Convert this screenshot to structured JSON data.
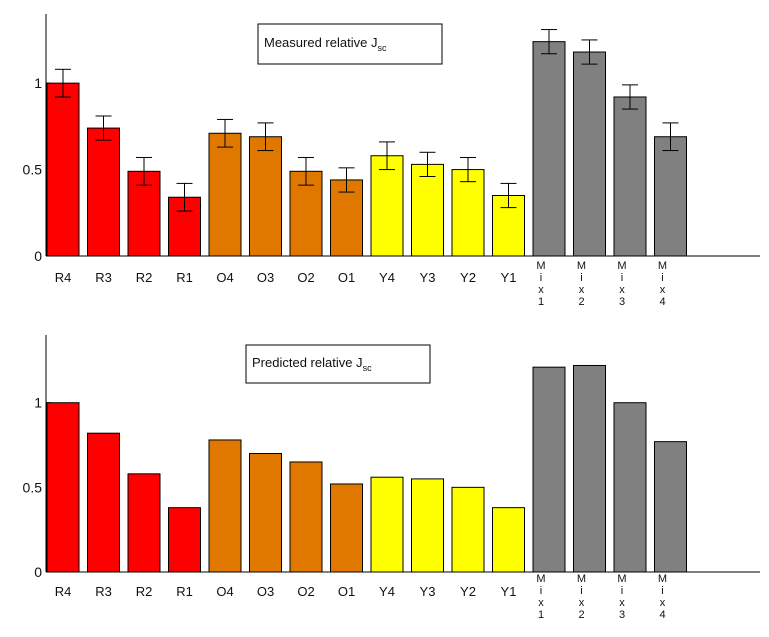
{
  "chart_data": [
    {
      "type": "bar",
      "title": "Measured relative J",
      "title_subscript": "sc",
      "categories": [
        "R4",
        "R3",
        "R2",
        "R1",
        "O4",
        "O3",
        "O2",
        "O1",
        "Y4",
        "Y3",
        "Y2",
        "Y1",
        "Mix1",
        "Mix2",
        "Mix3",
        "Mix4"
      ],
      "category_labels": [
        "R4",
        "R3",
        "R2",
        "R1",
        "O4",
        "O3",
        "O2",
        "O1",
        "Y4",
        "Y3",
        "Y2",
        "Y1",
        [
          "M",
          "i",
          "x",
          "1"
        ],
        [
          "M",
          "i",
          "x",
          "2"
        ],
        [
          "M",
          "i",
          "x",
          "3"
        ],
        [
          "M",
          "i",
          "x",
          "4"
        ]
      ],
      "values": [
        1.0,
        0.74,
        0.49,
        0.34,
        0.71,
        0.69,
        0.49,
        0.44,
        0.58,
        0.53,
        0.5,
        0.35,
        1.24,
        1.18,
        0.92,
        0.69
      ],
      "errors": [
        0.08,
        0.07,
        0.08,
        0.08,
        0.08,
        0.08,
        0.08,
        0.07,
        0.08,
        0.07,
        0.07,
        0.07,
        0.07,
        0.07,
        0.07,
        0.08
      ],
      "colors": [
        "#ff0000",
        "#ff0000",
        "#ff0000",
        "#ff0000",
        "#e07800",
        "#e07800",
        "#e07800",
        "#e07800",
        "#ffff00",
        "#ffff00",
        "#ffff00",
        "#ffff00",
        "#808080",
        "#808080",
        "#808080",
        "#808080"
      ],
      "yticks": [
        0,
        0.5,
        1
      ],
      "ytick_labels": [
        "0",
        "0.5",
        "1"
      ],
      "ylim": [
        0,
        1.4
      ],
      "grid": false,
      "legend": "none"
    },
    {
      "type": "bar",
      "title": "Predicted relative J",
      "title_subscript": "sc",
      "categories": [
        "R4",
        "R3",
        "R2",
        "R1",
        "O4",
        "O3",
        "O2",
        "O1",
        "Y4",
        "Y3",
        "Y2",
        "Y1",
        "Mix1",
        "Mix2",
        "Mix3",
        "Mix4"
      ],
      "category_labels": [
        "R4",
        "R3",
        "R2",
        "R1",
        "O4",
        "O3",
        "O2",
        "O1",
        "Y4",
        "Y3",
        "Y2",
        "Y1",
        [
          "M",
          "i",
          "x",
          "1"
        ],
        [
          "M",
          "i",
          "x",
          "2"
        ],
        [
          "M",
          "i",
          "x",
          "3"
        ],
        [
          "M",
          "i",
          "x",
          "4"
        ]
      ],
      "values": [
        1.0,
        0.82,
        0.58,
        0.38,
        0.78,
        0.7,
        0.65,
        0.52,
        0.56,
        0.55,
        0.5,
        0.38,
        1.21,
        1.22,
        1.0,
        0.77
      ],
      "colors": [
        "#ff0000",
        "#ff0000",
        "#ff0000",
        "#ff0000",
        "#e07800",
        "#e07800",
        "#e07800",
        "#e07800",
        "#ffff00",
        "#ffff00",
        "#ffff00",
        "#ffff00",
        "#808080",
        "#808080",
        "#808080",
        "#808080"
      ],
      "yticks": [
        0,
        0.5,
        1
      ],
      "ytick_labels": [
        "0",
        "0.5",
        "1"
      ],
      "ylim": [
        0,
        1.4
      ],
      "grid": false,
      "legend": "none"
    }
  ]
}
